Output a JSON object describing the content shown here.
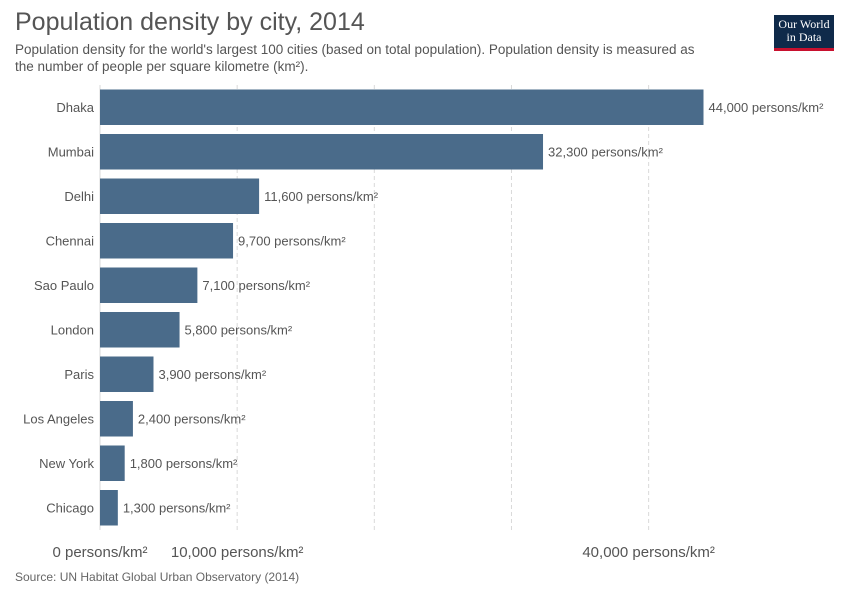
{
  "header": {
    "title": "Population density by city, 2014",
    "subtitle_line1": "Population density for the world's largest 100 cities (based on total population). Population density is measured as",
    "subtitle_line2": "the number of people per square kilometre (km²).",
    "logo_line1": "Our World",
    "logo_line2": "in Data"
  },
  "footer": {
    "source": "Source: UN Habitat Global Urban Observatory (2014)"
  },
  "colors": {
    "bar": "#4a6b8a",
    "grid": "#d9d9d9",
    "logo_bg": "#0f2a4a",
    "logo_accent": "#c8102e"
  },
  "chart_data": {
    "type": "bar",
    "orientation": "horizontal",
    "categories": [
      "Dhaka",
      "Mumbai",
      "Delhi",
      "Chennai",
      "Sao Paulo",
      "London",
      "Paris",
      "Los Angeles",
      "New York",
      "Chicago"
    ],
    "values": [
      44000,
      32300,
      11600,
      9700,
      7100,
      5800,
      3900,
      2400,
      1800,
      1300
    ],
    "value_labels": [
      "44,000 persons/km²",
      "32,300 persons/km²",
      "11,600 persons/km²",
      "9,700 persons/km²",
      "7,100 persons/km²",
      "5,800 persons/km²",
      "3,900 persons/km²",
      "2,400 persons/km²",
      "1,800 persons/km²",
      "1,300 persons/km²"
    ],
    "xlim": [
      0,
      44000
    ],
    "grid_values": [
      0,
      10000,
      20000,
      30000,
      40000
    ],
    "tick_values": [
      0,
      10000,
      40000
    ],
    "tick_labels": [
      "0 persons/km²",
      "10,000 persons/km²",
      "40,000 persons/km²"
    ],
    "grid": true,
    "legend": "none"
  }
}
